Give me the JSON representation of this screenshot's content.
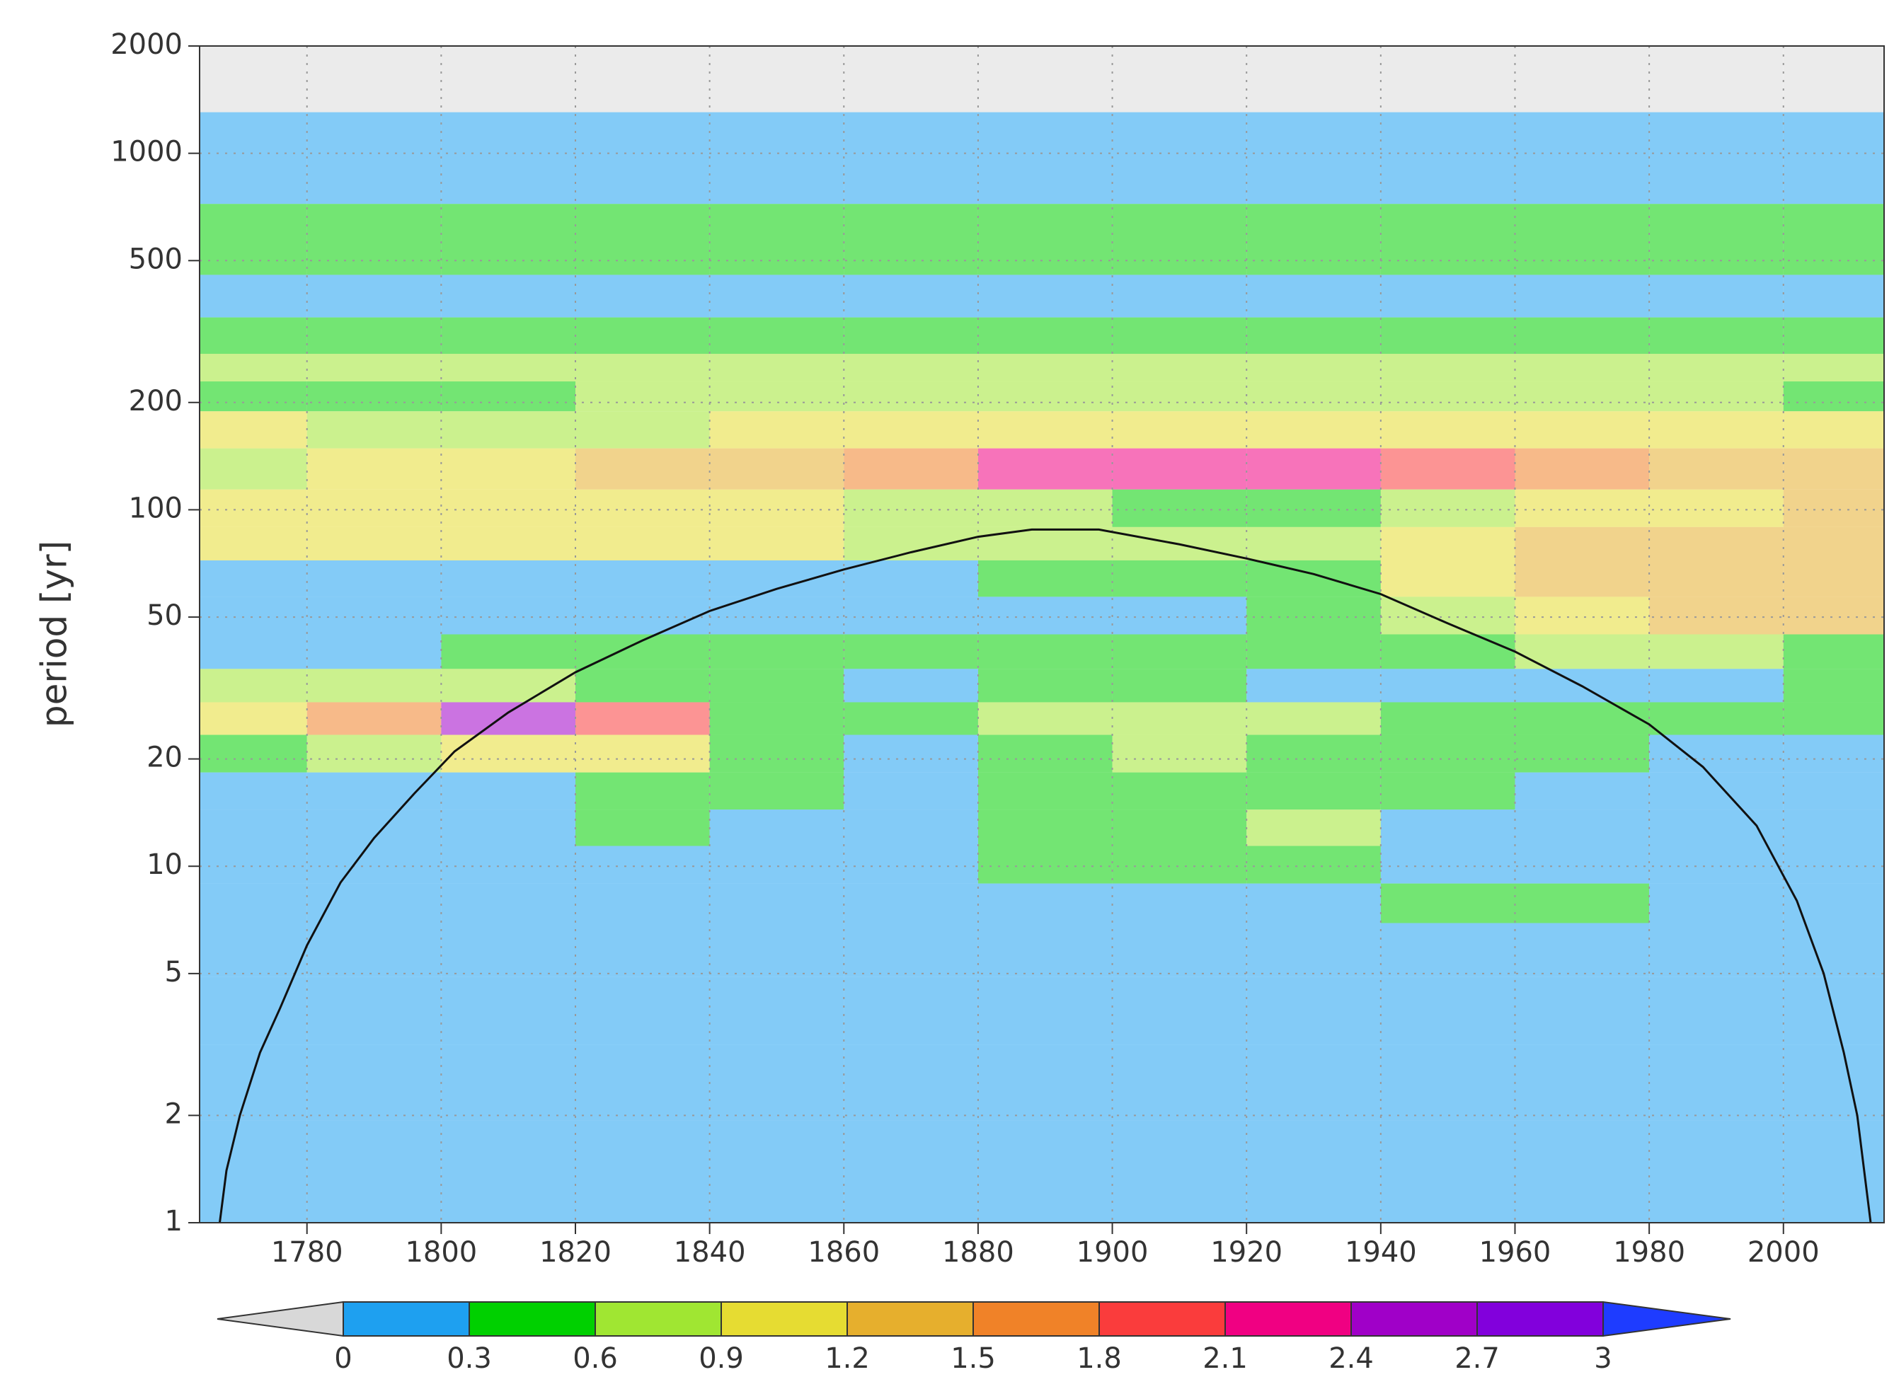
{
  "chart_data": {
    "type": "contour",
    "y_label": "period [yr]",
    "yscale": "log",
    "grid": true,
    "xlim": [
      1764,
      2015
    ],
    "xticks": [
      1780,
      1800,
      1820,
      1840,
      1860,
      1880,
      1900,
      1920,
      1940,
      1960,
      1980,
      2000
    ],
    "ylim": [
      1,
      2000
    ],
    "yticks": [
      1,
      2,
      5,
      10,
      20,
      50,
      100,
      200,
      500,
      1000,
      2000
    ],
    "x": [
      1770,
      1790,
      1810,
      1830,
      1850,
      1870,
      1890,
      1910,
      1930,
      1950,
      1970,
      1990,
      2010
    ],
    "y": [
      1700,
      1000,
      520,
      400,
      300,
      250,
      210,
      170,
      130,
      100,
      80,
      65,
      50,
      40,
      32,
      26,
      21,
      16,
      13,
      10,
      8,
      6,
      4,
      2.5,
      1.5
    ],
    "z": [
      [
        null,
        null,
        null,
        null,
        null,
        null,
        null,
        null,
        null,
        null,
        null,
        null,
        null
      ],
      [
        0.15,
        0.15,
        0.15,
        0.15,
        0.15,
        0.15,
        0.15,
        0.15,
        0.15,
        0.15,
        0.15,
        0.15,
        0.15
      ],
      [
        0.4,
        0.4,
        0.4,
        0.4,
        0.4,
        0.4,
        0.4,
        0.4,
        0.4,
        0.4,
        0.4,
        0.4,
        0.4
      ],
      [
        0.15,
        0.15,
        0.15,
        0.15,
        0.15,
        0.15,
        0.15,
        0.15,
        0.15,
        0.15,
        0.15,
        0.15,
        0.15
      ],
      [
        0.35,
        0.35,
        0.35,
        0.35,
        0.35,
        0.35,
        0.35,
        0.35,
        0.35,
        0.35,
        0.35,
        0.35,
        0.35
      ],
      [
        0.7,
        0.7,
        0.7,
        0.7,
        0.7,
        0.7,
        0.7,
        0.7,
        0.7,
        0.7,
        0.7,
        0.7,
        0.7
      ],
      [
        0.4,
        0.4,
        0.5,
        0.7,
        0.7,
        0.7,
        0.7,
        0.7,
        0.7,
        0.7,
        0.7,
        0.7,
        0.5
      ],
      [
        0.9,
        0.7,
        0.8,
        0.8,
        0.9,
        1.0,
        1.0,
        1.0,
        1.0,
        1.0,
        1.0,
        0.9,
        0.9
      ],
      [
        0.7,
        1.0,
        1.1,
        1.2,
        1.3,
        1.6,
        2.1,
        2.2,
        2.2,
        1.9,
        1.5,
        1.3,
        1.2
      ],
      [
        1.0,
        1.1,
        1.0,
        1.0,
        0.9,
        0.8,
        0.6,
        0.5,
        0.5,
        0.8,
        1.0,
        1.1,
        1.2
      ],
      [
        1.0,
        1.1,
        1.1,
        1.0,
        0.9,
        0.8,
        0.7,
        0.7,
        0.8,
        1.0,
        1.2,
        1.3,
        1.3
      ],
      [
        0.2,
        0.2,
        0.2,
        0.2,
        0.2,
        0.2,
        0.4,
        0.4,
        0.5,
        0.9,
        1.2,
        1.3,
        1.3
      ],
      [
        0.2,
        0.2,
        0.2,
        0.2,
        0.2,
        0.2,
        0.2,
        0.2,
        0.4,
        0.6,
        0.9,
        1.4,
        1.2
      ],
      [
        0.2,
        0.2,
        0.3,
        0.4,
        0.4,
        0.5,
        0.5,
        0.5,
        0.4,
        0.4,
        0.6,
        0.6,
        0.5
      ],
      [
        0.7,
        0.8,
        0.7,
        0.5,
        0.4,
        0.2,
        0.4,
        0.4,
        0.2,
        0.2,
        0.2,
        0.2,
        0.4
      ],
      [
        0.9,
        1.7,
        2.6,
        1.8,
        0.5,
        0.4,
        0.6,
        0.6,
        0.6,
        0.5,
        0.4,
        0.4,
        0.4
      ],
      [
        0.4,
        0.8,
        1.0,
        1.0,
        0.5,
        0.2,
        0.4,
        0.6,
        0.5,
        0.4,
        0.4,
        0.2,
        0.2
      ],
      [
        0.2,
        0.2,
        0.2,
        0.4,
        0.3,
        0.2,
        0.3,
        0.4,
        0.5,
        0.3,
        0.2,
        0.2,
        0.2
      ],
      [
        0.2,
        0.2,
        0.2,
        0.4,
        0.2,
        0.2,
        0.5,
        0.4,
        0.7,
        0.2,
        0.2,
        0.2,
        0.2
      ],
      [
        0.2,
        0.2,
        0.2,
        0.2,
        0.2,
        0.2,
        0.4,
        0.4,
        0.5,
        0.2,
        0.2,
        0.2,
        0.2
      ],
      [
        0.2,
        0.2,
        0.2,
        0.2,
        0.2,
        0.2,
        0.2,
        0.2,
        0.2,
        0.5,
        0.5,
        0.2,
        0.2
      ],
      [
        0.2,
        0.2,
        0.2,
        0.2,
        0.2,
        0.2,
        0.2,
        0.2,
        0.2,
        0.2,
        0.2,
        0.2,
        0.2
      ],
      [
        0.15,
        0.15,
        0.15,
        0.15,
        0.15,
        0.15,
        0.15,
        0.15,
        0.15,
        0.15,
        0.15,
        0.15,
        0.15
      ],
      [
        0.15,
        0.15,
        0.15,
        0.15,
        0.15,
        0.15,
        0.15,
        0.15,
        0.15,
        0.15,
        0.15,
        0.15,
        0.15
      ],
      [
        0.15,
        0.15,
        0.15,
        0.15,
        0.15,
        0.15,
        0.15,
        0.15,
        0.15,
        0.15,
        0.15,
        0.15,
        0.15
      ]
    ],
    "null_color": "#ebebeb",
    "colorbar": {
      "levels": [
        0,
        0.3,
        0.6,
        0.9,
        1.2,
        1.5,
        1.8,
        2.1,
        2.4,
        2.7,
        3
      ],
      "colors": [
        "#1ea0f0",
        "#00d000",
        "#a0e632",
        "#e6dc32",
        "#e6af2d",
        "#f08228",
        "#fa3c3c",
        "#f00082",
        "#a000c8",
        "#8200dc"
      ],
      "under_color": "#d8d8d8",
      "over_color": "#1e3cff"
    },
    "coi": {
      "color": "#111111",
      "x": [
        1767,
        1768,
        1770,
        1773,
        1776,
        1780,
        1785,
        1790,
        1796,
        1802,
        1810,
        1820,
        1830,
        1840,
        1850,
        1860,
        1870,
        1880,
        1888,
        1898,
        1910,
        1920,
        1930,
        1940,
        1950,
        1960,
        1970,
        1980,
        1988,
        1996,
        2002,
        2006,
        2009,
        2011,
        2013
      ],
      "values": [
        1,
        1.4,
        2,
        3,
        4,
        6,
        9,
        12,
        16,
        21,
        27,
        35,
        43,
        52,
        60,
        68,
        76,
        84,
        88,
        88,
        80,
        73,
        66,
        58,
        48,
        40,
        32,
        25,
        19,
        13,
        8,
        5,
        3,
        2,
        1
      ]
    }
  }
}
